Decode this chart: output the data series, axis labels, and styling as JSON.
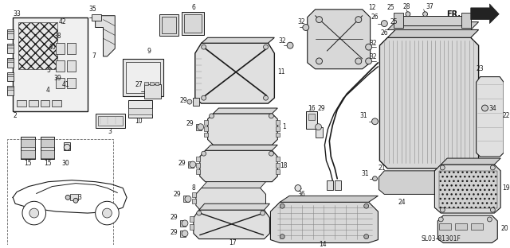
{
  "bg_color": "#ffffff",
  "gc": "#1a1a1a",
  "fig_width": 6.4,
  "fig_height": 3.12,
  "dpi": 100,
  "diagram_label": "SL03-81301F"
}
